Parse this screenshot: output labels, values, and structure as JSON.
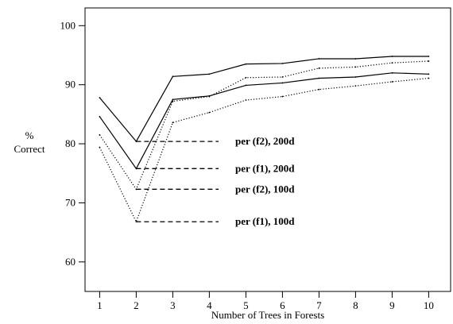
{
  "chart_data": {
    "type": "line",
    "xlabel": "Number of Trees in Forests",
    "ylabel": [
      "%",
      "Correct"
    ],
    "x": [
      1,
      2,
      3,
      4,
      5,
      6,
      7,
      8,
      9,
      10
    ],
    "xlim": [
      0.6,
      10.6
    ],
    "ylim": [
      55,
      103
    ],
    "yticks": [
      60,
      70,
      80,
      90,
      100
    ],
    "series": [
      {
        "name": "per (f2), 200d",
        "style": "solid",
        "values": [
          87.8,
          80.4,
          91.4,
          91.8,
          93.5,
          93.6,
          94.4,
          94.4,
          94.8,
          94.8
        ]
      },
      {
        "name": "per (f1), 200d",
        "style": "solid",
        "values": [
          84.6,
          75.8,
          87.5,
          88.1,
          89.9,
          90.3,
          91.1,
          91.3,
          92.0,
          91.8
        ]
      },
      {
        "name": "per (f2), 100d",
        "style": "dotted",
        "values": [
          81.5,
          72.3,
          87.2,
          88.0,
          91.2,
          91.3,
          92.8,
          93.0,
          93.7,
          94.0
        ]
      },
      {
        "name": "per (f1), 100d",
        "style": "dotted",
        "values": [
          79.4,
          66.8,
          83.6,
          85.3,
          87.4,
          88.0,
          89.2,
          89.8,
          90.5,
          91.1
        ]
      }
    ],
    "grid": false,
    "legend": "inline"
  }
}
